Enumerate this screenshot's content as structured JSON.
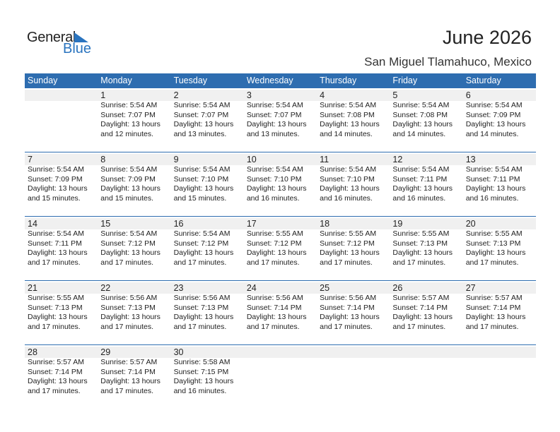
{
  "logo": {
    "general": "General",
    "blue": "Blue"
  },
  "title": "June 2026",
  "location": "San Miguel Tlamahuco, Mexico",
  "colors": {
    "header": "#2e6db0",
    "band": "#f0f0f0"
  },
  "weekdays": [
    "Sunday",
    "Monday",
    "Tuesday",
    "Wednesday",
    "Thursday",
    "Friday",
    "Saturday"
  ],
  "weeks": [
    [
      null,
      {
        "day": "1",
        "sunrise": "Sunrise: 5:54 AM",
        "sunset": "Sunset: 7:07 PM",
        "daylight": "Daylight: 13 hours",
        "minutes": "and 12 minutes."
      },
      {
        "day": "2",
        "sunrise": "Sunrise: 5:54 AM",
        "sunset": "Sunset: 7:07 PM",
        "daylight": "Daylight: 13 hours",
        "minutes": "and 13 minutes."
      },
      {
        "day": "3",
        "sunrise": "Sunrise: 5:54 AM",
        "sunset": "Sunset: 7:07 PM",
        "daylight": "Daylight: 13 hours",
        "minutes": "and 13 minutes."
      },
      {
        "day": "4",
        "sunrise": "Sunrise: 5:54 AM",
        "sunset": "Sunset: 7:08 PM",
        "daylight": "Daylight: 13 hours",
        "minutes": "and 14 minutes."
      },
      {
        "day": "5",
        "sunrise": "Sunrise: 5:54 AM",
        "sunset": "Sunset: 7:08 PM",
        "daylight": "Daylight: 13 hours",
        "minutes": "and 14 minutes."
      },
      {
        "day": "6",
        "sunrise": "Sunrise: 5:54 AM",
        "sunset": "Sunset: 7:09 PM",
        "daylight": "Daylight: 13 hours",
        "minutes": "and 14 minutes."
      }
    ],
    [
      {
        "day": "7",
        "sunrise": "Sunrise: 5:54 AM",
        "sunset": "Sunset: 7:09 PM",
        "daylight": "Daylight: 13 hours",
        "minutes": "and 15 minutes."
      },
      {
        "day": "8",
        "sunrise": "Sunrise: 5:54 AM",
        "sunset": "Sunset: 7:09 PM",
        "daylight": "Daylight: 13 hours",
        "minutes": "and 15 minutes."
      },
      {
        "day": "9",
        "sunrise": "Sunrise: 5:54 AM",
        "sunset": "Sunset: 7:10 PM",
        "daylight": "Daylight: 13 hours",
        "minutes": "and 15 minutes."
      },
      {
        "day": "10",
        "sunrise": "Sunrise: 5:54 AM",
        "sunset": "Sunset: 7:10 PM",
        "daylight": "Daylight: 13 hours",
        "minutes": "and 16 minutes."
      },
      {
        "day": "11",
        "sunrise": "Sunrise: 5:54 AM",
        "sunset": "Sunset: 7:10 PM",
        "daylight": "Daylight: 13 hours",
        "minutes": "and 16 minutes."
      },
      {
        "day": "12",
        "sunrise": "Sunrise: 5:54 AM",
        "sunset": "Sunset: 7:11 PM",
        "daylight": "Daylight: 13 hours",
        "minutes": "and 16 minutes."
      },
      {
        "day": "13",
        "sunrise": "Sunrise: 5:54 AM",
        "sunset": "Sunset: 7:11 PM",
        "daylight": "Daylight: 13 hours",
        "minutes": "and 16 minutes."
      }
    ],
    [
      {
        "day": "14",
        "sunrise": "Sunrise: 5:54 AM",
        "sunset": "Sunset: 7:11 PM",
        "daylight": "Daylight: 13 hours",
        "minutes": "and 17 minutes."
      },
      {
        "day": "15",
        "sunrise": "Sunrise: 5:54 AM",
        "sunset": "Sunset: 7:12 PM",
        "daylight": "Daylight: 13 hours",
        "minutes": "and 17 minutes."
      },
      {
        "day": "16",
        "sunrise": "Sunrise: 5:54 AM",
        "sunset": "Sunset: 7:12 PM",
        "daylight": "Daylight: 13 hours",
        "minutes": "and 17 minutes."
      },
      {
        "day": "17",
        "sunrise": "Sunrise: 5:55 AM",
        "sunset": "Sunset: 7:12 PM",
        "daylight": "Daylight: 13 hours",
        "minutes": "and 17 minutes."
      },
      {
        "day": "18",
        "sunrise": "Sunrise: 5:55 AM",
        "sunset": "Sunset: 7:12 PM",
        "daylight": "Daylight: 13 hours",
        "minutes": "and 17 minutes."
      },
      {
        "day": "19",
        "sunrise": "Sunrise: 5:55 AM",
        "sunset": "Sunset: 7:13 PM",
        "daylight": "Daylight: 13 hours",
        "minutes": "and 17 minutes."
      },
      {
        "day": "20",
        "sunrise": "Sunrise: 5:55 AM",
        "sunset": "Sunset: 7:13 PM",
        "daylight": "Daylight: 13 hours",
        "minutes": "and 17 minutes."
      }
    ],
    [
      {
        "day": "21",
        "sunrise": "Sunrise: 5:55 AM",
        "sunset": "Sunset: 7:13 PM",
        "daylight": "Daylight: 13 hours",
        "minutes": "and 17 minutes."
      },
      {
        "day": "22",
        "sunrise": "Sunrise: 5:56 AM",
        "sunset": "Sunset: 7:13 PM",
        "daylight": "Daylight: 13 hours",
        "minutes": "and 17 minutes."
      },
      {
        "day": "23",
        "sunrise": "Sunrise: 5:56 AM",
        "sunset": "Sunset: 7:13 PM",
        "daylight": "Daylight: 13 hours",
        "minutes": "and 17 minutes."
      },
      {
        "day": "24",
        "sunrise": "Sunrise: 5:56 AM",
        "sunset": "Sunset: 7:14 PM",
        "daylight": "Daylight: 13 hours",
        "minutes": "and 17 minutes."
      },
      {
        "day": "25",
        "sunrise": "Sunrise: 5:56 AM",
        "sunset": "Sunset: 7:14 PM",
        "daylight": "Daylight: 13 hours",
        "minutes": "and 17 minutes."
      },
      {
        "day": "26",
        "sunrise": "Sunrise: 5:57 AM",
        "sunset": "Sunset: 7:14 PM",
        "daylight": "Daylight: 13 hours",
        "minutes": "and 17 minutes."
      },
      {
        "day": "27",
        "sunrise": "Sunrise: 5:57 AM",
        "sunset": "Sunset: 7:14 PM",
        "daylight": "Daylight: 13 hours",
        "minutes": "and 17 minutes."
      }
    ],
    [
      {
        "day": "28",
        "sunrise": "Sunrise: 5:57 AM",
        "sunset": "Sunset: 7:14 PM",
        "daylight": "Daylight: 13 hours",
        "minutes": "and 17 minutes."
      },
      {
        "day": "29",
        "sunrise": "Sunrise: 5:57 AM",
        "sunset": "Sunset: 7:14 PM",
        "daylight": "Daylight: 13 hours",
        "minutes": "and 17 minutes."
      },
      {
        "day": "30",
        "sunrise": "Sunrise: 5:58 AM",
        "sunset": "Sunset: 7:15 PM",
        "daylight": "Daylight: 13 hours",
        "minutes": "and 16 minutes."
      },
      null,
      null,
      null,
      null
    ]
  ]
}
